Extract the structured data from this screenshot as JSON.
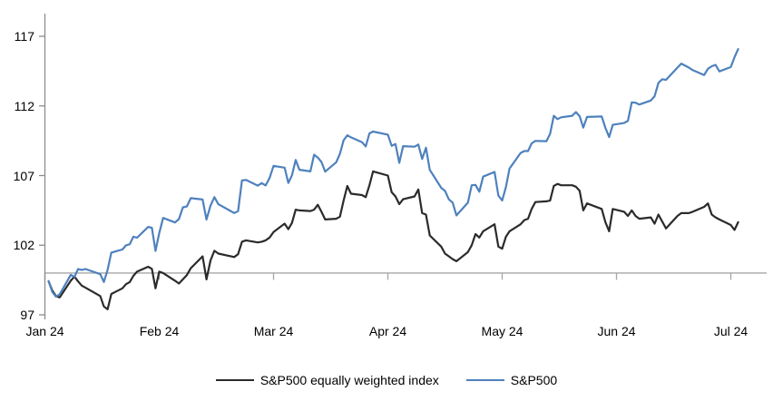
{
  "colors": {
    "background": "#ffffff",
    "y_axis_line": "#8c8c8c",
    "baseline_line": "#a6a6a6",
    "tick_color": "#a6a6a6",
    "text": "#000000",
    "equal_weight_line": "#2b2b2b",
    "sp500_line": "#4e81bd"
  },
  "chart_data": {
    "type": "line",
    "title": "",
    "xlabel": "",
    "ylabel": "",
    "grid": false,
    "legend_position": "bottom",
    "baseline_value": 100,
    "y_axis": {
      "ticks": [
        117,
        112,
        107,
        102,
        97
      ],
      "tick_labels": [
        "117",
        "112",
        "107",
        "102",
        "97"
      ],
      "ylim": [
        96.7,
        118.6
      ]
    },
    "x_axis": {
      "tick_labels": [
        "Jan 24",
        "Feb 24",
        "Mar 24",
        "Apr 24",
        "May 24",
        "Jun 24",
        "Jul 24"
      ],
      "tick_months": [
        1,
        2,
        3,
        4,
        5,
        6,
        7
      ]
    },
    "dates": [
      [
        1,
        2
      ],
      [
        1,
        3
      ],
      [
        1,
        4
      ],
      [
        1,
        5
      ],
      [
        1,
        8
      ],
      [
        1,
        9
      ],
      [
        1,
        10
      ],
      [
        1,
        11
      ],
      [
        1,
        12
      ],
      [
        1,
        16
      ],
      [
        1,
        17
      ],
      [
        1,
        18
      ],
      [
        1,
        19
      ],
      [
        1,
        22
      ],
      [
        1,
        23
      ],
      [
        1,
        24
      ],
      [
        1,
        25
      ],
      [
        1,
        26
      ],
      [
        1,
        29
      ],
      [
        1,
        30
      ],
      [
        1,
        31
      ],
      [
        2,
        1
      ],
      [
        2,
        2
      ],
      [
        2,
        5
      ],
      [
        2,
        6
      ],
      [
        2,
        7
      ],
      [
        2,
        8
      ],
      [
        2,
        9
      ],
      [
        2,
        12
      ],
      [
        2,
        13
      ],
      [
        2,
        14
      ],
      [
        2,
        15
      ],
      [
        2,
        16
      ],
      [
        2,
        20
      ],
      [
        2,
        21
      ],
      [
        2,
        22
      ],
      [
        2,
        23
      ],
      [
        2,
        26
      ],
      [
        2,
        27
      ],
      [
        2,
        28
      ],
      [
        2,
        29
      ],
      [
        3,
        1
      ],
      [
        3,
        4
      ],
      [
        3,
        5
      ],
      [
        3,
        6
      ],
      [
        3,
        7
      ],
      [
        3,
        8
      ],
      [
        3,
        11
      ],
      [
        3,
        12
      ],
      [
        3,
        13
      ],
      [
        3,
        14
      ],
      [
        3,
        15
      ],
      [
        3,
        18
      ],
      [
        3,
        19
      ],
      [
        3,
        20
      ],
      [
        3,
        21
      ],
      [
        3,
        22
      ],
      [
        3,
        25
      ],
      [
        3,
        26
      ],
      [
        3,
        27
      ],
      [
        3,
        28
      ],
      [
        4,
        1
      ],
      [
        4,
        2
      ],
      [
        4,
        3
      ],
      [
        4,
        4
      ],
      [
        4,
        5
      ],
      [
        4,
        8
      ],
      [
        4,
        9
      ],
      [
        4,
        10
      ],
      [
        4,
        11
      ],
      [
        4,
        12
      ],
      [
        4,
        15
      ],
      [
        4,
        16
      ],
      [
        4,
        17
      ],
      [
        4,
        18
      ],
      [
        4,
        19
      ],
      [
        4,
        22
      ],
      [
        4,
        23
      ],
      [
        4,
        24
      ],
      [
        4,
        25
      ],
      [
        4,
        26
      ],
      [
        4,
        29
      ],
      [
        4,
        30
      ],
      [
        5,
        1
      ],
      [
        5,
        2
      ],
      [
        5,
        3
      ],
      [
        5,
        6
      ],
      [
        5,
        7
      ],
      [
        5,
        8
      ],
      [
        5,
        9
      ],
      [
        5,
        10
      ],
      [
        5,
        13
      ],
      [
        5,
        14
      ],
      [
        5,
        15
      ],
      [
        5,
        16
      ],
      [
        5,
        17
      ],
      [
        5,
        20
      ],
      [
        5,
        21
      ],
      [
        5,
        22
      ],
      [
        5,
        23
      ],
      [
        5,
        24
      ],
      [
        5,
        28
      ],
      [
        5,
        29
      ],
      [
        5,
        30
      ],
      [
        5,
        31
      ],
      [
        6,
        3
      ],
      [
        6,
        4
      ],
      [
        6,
        5
      ],
      [
        6,
        6
      ],
      [
        6,
        7
      ],
      [
        6,
        10
      ],
      [
        6,
        11
      ],
      [
        6,
        12
      ],
      [
        6,
        13
      ],
      [
        6,
        14
      ],
      [
        6,
        17
      ],
      [
        6,
        18
      ],
      [
        6,
        20
      ],
      [
        6,
        21
      ],
      [
        6,
        24
      ],
      [
        6,
        25
      ],
      [
        6,
        26
      ],
      [
        6,
        27
      ],
      [
        6,
        28
      ],
      [
        7,
        1
      ],
      [
        7,
        2
      ],
      [
        7,
        3
      ]
    ],
    "series": [
      {
        "name": "S&P500 equally weighted index",
        "color": "#2b2b2b",
        "values": [
          99.4,
          98.75,
          98.35,
          98.25,
          99.45,
          99.75,
          99.4,
          99.1,
          98.95,
          98.35,
          97.6,
          97.4,
          98.5,
          98.9,
          99.2,
          99.35,
          99.8,
          100.1,
          100.45,
          100.3,
          98.9,
          100.1,
          100.0,
          99.45,
          99.25,
          99.55,
          99.85,
          100.35,
          101.2,
          99.55,
          100.9,
          101.6,
          101.4,
          101.15,
          101.35,
          102.25,
          102.35,
          102.2,
          102.25,
          102.35,
          102.55,
          102.95,
          103.55,
          103.15,
          103.6,
          104.55,
          104.5,
          104.45,
          104.55,
          104.9,
          104.4,
          103.85,
          103.9,
          104.05,
          105.2,
          106.25,
          105.7,
          105.6,
          105.45,
          106.3,
          107.3,
          107.0,
          105.8,
          105.5,
          104.95,
          105.3,
          105.5,
          106.0,
          104.3,
          104.2,
          102.7,
          101.9,
          101.4,
          101.2,
          101.0,
          100.85,
          101.5,
          102.0,
          102.8,
          102.55,
          103.0,
          103.5,
          101.9,
          101.75,
          102.6,
          103.0,
          103.5,
          103.8,
          103.9,
          104.6,
          105.1,
          105.15,
          105.2,
          106.25,
          106.4,
          106.3,
          106.3,
          106.2,
          105.9,
          104.5,
          105.0,
          104.6,
          103.65,
          103.0,
          104.6,
          104.4,
          104.1,
          104.5,
          104.1,
          103.9,
          104.0,
          103.55,
          104.2,
          103.7,
          103.2,
          104.1,
          104.3,
          104.3,
          104.4,
          104.75,
          105.0,
          104.2,
          104.0,
          103.85,
          103.45,
          103.1,
          103.65
        ]
      },
      {
        "name": "S&P500",
        "color": "#4e81bd",
        "values": [
          99.43,
          98.64,
          98.3,
          98.48,
          99.87,
          99.72,
          100.29,
          100.22,
          100.29,
          99.92,
          99.36,
          100.23,
          101.47,
          101.69,
          101.99,
          102.07,
          102.61,
          102.54,
          103.31,
          103.25,
          101.59,
          102.86,
          103.96,
          103.63,
          103.87,
          104.72,
          104.78,
          105.38,
          105.28,
          103.84,
          104.84,
          105.45,
          104.94,
          104.31,
          104.44,
          106.65,
          106.69,
          106.28,
          106.46,
          106.29,
          106.84,
          107.7,
          107.57,
          106.47,
          107.02,
          108.12,
          107.42,
          107.3,
          108.5,
          108.29,
          107.98,
          107.28,
          107.96,
          108.57,
          109.53,
          109.89,
          109.74,
          109.4,
          109.09,
          110.03,
          110.16,
          109.94,
          109.14,
          109.26,
          107.91,
          109.11,
          109.07,
          109.23,
          108.19,
          109.0,
          107.41,
          106.12,
          105.9,
          105.29,
          105.06,
          104.14,
          105.05,
          106.3,
          106.33,
          105.84,
          106.92,
          107.26,
          105.57,
          105.21,
          106.17,
          107.5,
          108.62,
          108.76,
          108.76,
          109.31,
          109.49,
          109.47,
          110.0,
          111.29,
          111.05,
          111.18,
          111.29,
          111.56,
          111.26,
          110.44,
          111.21,
          111.24,
          110.42,
          109.76,
          110.64,
          110.77,
          110.93,
          112.25,
          112.23,
          112.1,
          112.39,
          112.7,
          113.65,
          113.92,
          113.87,
          114.75,
          115.04,
          114.75,
          114.57,
          114.22,
          114.67,
          114.85,
          114.95,
          114.48,
          114.79,
          115.5,
          116.08
        ]
      }
    ]
  }
}
